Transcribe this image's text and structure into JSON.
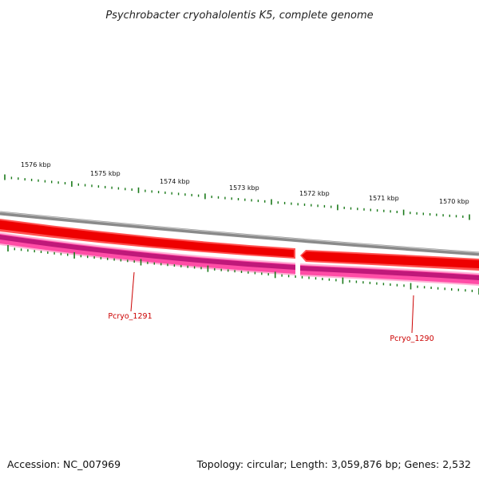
{
  "title": "Psychrobacter cryohalolentis K5, complete genome",
  "accession": "Accession: NC_007969",
  "summary": "Topology: circular; Length: 3,059,876 bp; Genes: 2,532",
  "scale": {
    "labels": [
      "1576 kbp",
      "1575 kbp",
      "1574 kbp",
      "1573 kbp",
      "1572 kbp",
      "1571 kbp",
      "1570 kbp"
    ]
  },
  "genes": [
    {
      "name": "Pcryo_1291",
      "strand": "reverse"
    },
    {
      "name": "Pcryo_1290",
      "strand": "reverse"
    }
  ],
  "colors": {
    "backbone": "#8a8a8a",
    "cds_dark": "#ee0000",
    "cds_light": "#ff5050",
    "gene_dark": "#c0187a",
    "gene_light": "#ff4da6",
    "gene_edge": "#ffb3d6",
    "tick": "#1a7a1a",
    "label": "#cc0000",
    "pointer": "#cc0000"
  }
}
